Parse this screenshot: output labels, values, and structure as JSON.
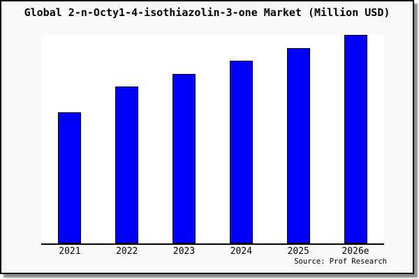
{
  "chart_data": {
    "type": "bar",
    "title": "Global 2-n-Octy1-4-isothiazolin-3-one Market (Million USD)",
    "categories": [
      "2021",
      "2022",
      "2023",
      "2024",
      "2025",
      "2026e"
    ],
    "values": [
      62.8,
      75.1,
      81.4,
      87.7,
      93.7,
      100
    ],
    "ylim": [
      0,
      100
    ],
    "value_note": "no y-axis or data labels shown; values are relative bar heights with 2026e = 100",
    "xlabel": "",
    "ylabel": "",
    "legend": "none",
    "grid": "off",
    "bar_color": "#0000ff",
    "bar_border_color": "#000000"
  },
  "footer": {
    "source": "Source: Prof Research"
  },
  "colors": {
    "figure_bg": "#f8f8f8",
    "plot_bg": "#ffffff",
    "frame_border": "#000000",
    "shadow": "#8c8c8c",
    "text": "#000000"
  }
}
